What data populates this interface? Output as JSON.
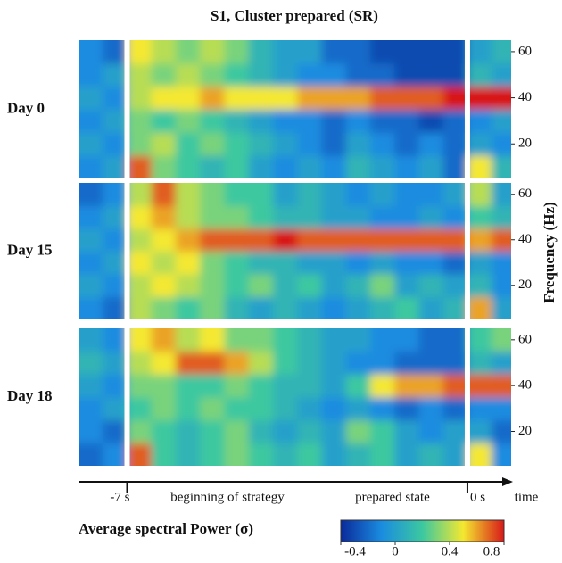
{
  "chart_data": {
    "type": "heatmap",
    "title": "S1, Cluster prepared (SR)",
    "x": [
      -7.75,
      -7.25,
      -6.75,
      -6.25,
      -5.75,
      -5.25,
      -4.75,
      -4.25,
      -3.75,
      -3.25,
      -2.75,
      -2.25,
      -1.75,
      -1.25,
      -0.75,
      -0.25,
      0.25,
      0.75
    ],
    "y": [
      10,
      20,
      30,
      40,
      50,
      60
    ],
    "xlim": [
      -8,
      0.9
    ],
    "ylim": [
      5,
      65
    ],
    "xticks": [
      {
        "value": -7,
        "label": "-7 s"
      },
      {
        "value": 0,
        "label": "0 s"
      }
    ],
    "yticks": [
      20,
      40,
      60
    ],
    "x_label": "time",
    "y_label": "Frequency (Hz)",
    "annotations": [
      "beginning of strategy",
      "prepared state"
    ],
    "panels": [
      {
        "label": "Day 0",
        "z": [
          [
            -0.1,
            0.0,
            0.7,
            0.3,
            0.2,
            0.1,
            0.2,
            0.0,
            -0.1,
            0.0,
            -0.1,
            0.1,
            0.0,
            -0.1,
            0.0,
            -0.2,
            0.5,
            0.1
          ],
          [
            0.0,
            -0.1,
            0.3,
            0.4,
            0.2,
            0.3,
            0.2,
            0.1,
            0.0,
            -0.1,
            -0.2,
            0.0,
            -0.1,
            -0.2,
            -0.1,
            -0.2,
            0.0,
            -0.1
          ],
          [
            -0.1,
            0.0,
            0.3,
            0.2,
            0.3,
            0.2,
            0.1,
            0.0,
            -0.1,
            -0.1,
            -0.2,
            -0.1,
            -0.2,
            -0.2,
            -0.3,
            -0.2,
            -0.1,
            0.0
          ],
          [
            0.0,
            -0.1,
            0.4,
            0.5,
            0.5,
            0.6,
            0.5,
            0.5,
            0.5,
            0.6,
            0.6,
            0.6,
            0.7,
            0.7,
            0.7,
            0.8,
            0.8,
            0.8
          ],
          [
            -0.1,
            0.0,
            0.4,
            0.3,
            0.4,
            0.3,
            0.2,
            0.1,
            0.0,
            -0.1,
            -0.1,
            -0.2,
            -0.2,
            -0.3,
            -0.3,
            -0.3,
            0.1,
            0.0
          ],
          [
            -0.1,
            -0.2,
            0.5,
            0.4,
            0.3,
            0.4,
            0.3,
            0.1,
            0.0,
            0.0,
            -0.2,
            -0.2,
            -0.3,
            -0.3,
            -0.3,
            -0.3,
            0.0,
            0.1
          ]
        ]
      },
      {
        "label": "Day 15",
        "z": [
          [
            -0.1,
            -0.2,
            0.4,
            0.3,
            0.2,
            0.3,
            0.1,
            0.0,
            0.1,
            0.0,
            -0.1,
            0.0,
            0.1,
            0.2,
            0.0,
            0.1,
            0.6,
            0.0
          ],
          [
            0.0,
            -0.1,
            0.4,
            0.5,
            0.4,
            0.3,
            0.2,
            0.3,
            0.1,
            0.2,
            0.0,
            0.1,
            0.3,
            0.0,
            0.1,
            0.0,
            0.1,
            -0.1
          ],
          [
            -0.1,
            0.0,
            0.5,
            0.4,
            0.5,
            0.3,
            0.2,
            0.1,
            0.1,
            0.0,
            0.0,
            -0.1,
            0.0,
            -0.1,
            -0.1,
            -0.2,
            0.0,
            -0.1
          ],
          [
            0.0,
            -0.1,
            0.4,
            0.5,
            0.6,
            0.7,
            0.7,
            0.7,
            0.8,
            0.7,
            0.7,
            0.7,
            0.7,
            0.7,
            0.7,
            0.7,
            0.6,
            0.7
          ],
          [
            -0.1,
            0.0,
            0.5,
            0.6,
            0.4,
            0.3,
            0.3,
            0.2,
            0.1,
            0.1,
            0.0,
            0.0,
            -0.1,
            -0.1,
            0.0,
            -0.1,
            0.2,
            0.1
          ],
          [
            -0.2,
            -0.1,
            0.4,
            0.7,
            0.4,
            0.3,
            0.2,
            0.2,
            0.0,
            0.1,
            0.0,
            -0.1,
            0.0,
            -0.1,
            -0.1,
            0.0,
            0.4,
            0.0
          ]
        ]
      },
      {
        "label": "Day 18",
        "z": [
          [
            -0.2,
            -0.1,
            0.7,
            0.2,
            0.1,
            0.2,
            0.3,
            0.2,
            0.1,
            0.2,
            0.0,
            0.1,
            0.2,
            0.0,
            0.1,
            0.0,
            0.5,
            -0.1
          ],
          [
            -0.1,
            -0.2,
            0.3,
            0.2,
            0.1,
            0.2,
            0.3,
            0.1,
            0.0,
            0.1,
            0.0,
            0.3,
            0.2,
            0.0,
            -0.1,
            0.0,
            0.0,
            -0.2
          ],
          [
            -0.1,
            0.0,
            0.2,
            0.3,
            0.2,
            0.3,
            0.2,
            0.2,
            0.1,
            0.0,
            -0.1,
            0.0,
            -0.1,
            -0.2,
            -0.1,
            -0.2,
            -0.1,
            -0.1
          ],
          [
            0.0,
            -0.1,
            0.3,
            0.3,
            0.2,
            0.2,
            0.3,
            0.2,
            0.1,
            0.1,
            0.0,
            0.2,
            0.5,
            0.6,
            0.6,
            0.7,
            0.7,
            0.7
          ],
          [
            0.1,
            0.0,
            0.4,
            0.5,
            0.7,
            0.7,
            0.6,
            0.4,
            0.2,
            0.1,
            0.0,
            -0.1,
            -0.1,
            -0.2,
            -0.2,
            -0.2,
            0.1,
            0.0
          ],
          [
            0.0,
            -0.1,
            0.5,
            0.6,
            0.4,
            0.5,
            0.3,
            0.3,
            0.2,
            0.1,
            0.0,
            0.0,
            -0.1,
            -0.1,
            -0.2,
            -0.2,
            0.2,
            0.3
          ]
        ]
      }
    ],
    "colorbar": {
      "label": "Average spectral Power (σ)",
      "lim": [
        -0.4,
        0.8
      ],
      "ticks": [
        -0.4,
        0,
        0.4,
        0.8
      ],
      "colors": [
        "#0a2a9a",
        "#1a8ce0",
        "#3cc8a0",
        "#f4e830",
        "#d81818"
      ]
    }
  }
}
